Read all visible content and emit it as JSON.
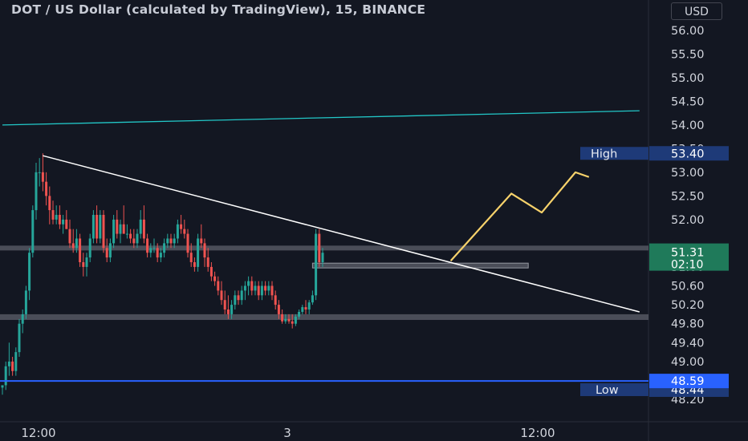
{
  "header": {
    "title": "DOT / US Dollar (calculated by TradingView), 15, BINANCE",
    "currency_button": "USD"
  },
  "colors": {
    "background": "#131722",
    "up": "#26a69a",
    "down": "#ef5350",
    "trend_white": "#ffffff",
    "channel_teal": "#22c7c7",
    "low_line_blue": "#2962ff",
    "arrow_yellow": "#f7d26b",
    "zone_gray": "#5d606b",
    "high_low_label": "#1e3a78"
  },
  "chart_data": {
    "type": "candlestick",
    "symbol": "DOT / US Dollar",
    "interval": "15",
    "exchange": "BINANCE",
    "y_axis": {
      "ylim": [
        48.05,
        56.2
      ],
      "ticks": [
        "56.00",
        "55.50",
        "55.00",
        "54.50",
        "54.00",
        "53.50",
        "53.00",
        "52.50",
        "52.00",
        "51.00",
        "50.60",
        "50.20",
        "49.80",
        "49.40",
        "49.00",
        "48.20"
      ]
    },
    "x_axis": {
      "ticks": [
        "12:00",
        "3",
        "12:00"
      ]
    },
    "candles": [
      [
        48.45,
        48.5,
        48.3,
        48.5
      ],
      [
        48.5,
        49.0,
        48.4,
        48.9
      ],
      [
        48.9,
        49.4,
        48.7,
        49.0
      ],
      [
        49.0,
        49.1,
        48.7,
        48.8
      ],
      [
        48.8,
        49.3,
        48.7,
        49.2
      ],
      [
        49.2,
        49.9,
        49.1,
        49.8
      ],
      [
        49.8,
        50.1,
        49.6,
        50.0
      ],
      [
        50.0,
        50.6,
        49.9,
        50.5
      ],
      [
        50.5,
        51.4,
        50.3,
        51.3
      ],
      [
        51.3,
        52.3,
        51.2,
        52.2
      ],
      [
        52.2,
        53.2,
        52.0,
        53.0
      ],
      [
        53.0,
        53.3,
        52.7,
        53.0
      ],
      [
        53.0,
        53.4,
        52.6,
        52.8
      ],
      [
        52.8,
        53.0,
        52.3,
        52.5
      ],
      [
        52.5,
        52.7,
        51.9,
        52.2
      ],
      [
        52.2,
        52.4,
        51.9,
        52.0
      ],
      [
        52.0,
        52.3,
        51.9,
        52.1
      ],
      [
        52.1,
        52.3,
        51.8,
        51.9
      ],
      [
        51.9,
        52.1,
        51.7,
        52.0
      ],
      [
        52.0,
        52.2,
        51.8,
        51.8
      ],
      [
        51.8,
        52.0,
        51.4,
        51.5
      ],
      [
        51.5,
        51.8,
        51.3,
        51.4
      ],
      [
        51.4,
        51.8,
        51.3,
        51.6
      ],
      [
        51.6,
        51.7,
        51.0,
        51.1
      ],
      [
        51.1,
        51.3,
        50.8,
        51.0
      ],
      [
        51.0,
        51.3,
        50.8,
        51.2
      ],
      [
        51.2,
        51.7,
        51.1,
        51.6
      ],
      [
        51.6,
        52.2,
        51.5,
        52.1
      ],
      [
        52.1,
        52.3,
        51.5,
        51.6
      ],
      [
        51.6,
        52.2,
        51.5,
        52.1
      ],
      [
        52.1,
        52.2,
        51.3,
        51.4
      ],
      [
        51.4,
        51.6,
        51.1,
        51.2
      ],
      [
        51.2,
        51.6,
        51.1,
        51.5
      ],
      [
        51.5,
        52.1,
        51.4,
        52.0
      ],
      [
        52.0,
        52.2,
        51.6,
        51.7
      ],
      [
        51.7,
        52.0,
        51.5,
        51.9
      ],
      [
        51.9,
        52.3,
        51.7,
        51.7
      ],
      [
        51.7,
        51.9,
        51.6,
        51.7
      ],
      [
        51.7,
        51.8,
        51.5,
        51.6
      ],
      [
        51.6,
        51.8,
        51.4,
        51.5
      ],
      [
        51.5,
        51.8,
        51.4,
        51.7
      ],
      [
        51.7,
        52.2,
        51.6,
        52.0
      ],
      [
        52.0,
        52.3,
        51.5,
        51.6
      ],
      [
        51.6,
        51.7,
        51.2,
        51.3
      ],
      [
        51.3,
        51.5,
        51.2,
        51.4
      ],
      [
        51.4,
        51.6,
        51.3,
        51.4
      ],
      [
        51.4,
        51.5,
        51.1,
        51.2
      ],
      [
        51.2,
        51.4,
        51.1,
        51.3
      ],
      [
        51.3,
        51.6,
        51.2,
        51.5
      ],
      [
        51.5,
        51.7,
        51.4,
        51.6
      ],
      [
        51.6,
        51.7,
        51.4,
        51.5
      ],
      [
        51.5,
        51.7,
        51.4,
        51.6
      ],
      [
        51.6,
        52.0,
        51.5,
        51.9
      ],
      [
        51.9,
        52.1,
        51.7,
        51.8
      ],
      [
        51.8,
        52.0,
        51.6,
        51.7
      ],
      [
        51.7,
        51.8,
        51.2,
        51.3
      ],
      [
        51.3,
        51.5,
        51.0,
        51.1
      ],
      [
        51.1,
        51.2,
        50.9,
        51.0
      ],
      [
        51.0,
        51.7,
        50.9,
        51.6
      ],
      [
        51.6,
        51.9,
        51.4,
        51.5
      ],
      [
        51.5,
        51.6,
        51.0,
        51.2
      ],
      [
        51.2,
        51.4,
        50.9,
        51.0
      ],
      [
        51.0,
        51.1,
        50.7,
        50.8
      ],
      [
        50.8,
        50.9,
        50.6,
        50.7
      ],
      [
        50.7,
        50.8,
        50.4,
        50.5
      ],
      [
        50.5,
        50.7,
        50.2,
        50.3
      ],
      [
        50.3,
        50.5,
        50.0,
        50.1
      ],
      [
        50.1,
        50.4,
        49.9,
        50.0
      ],
      [
        50.0,
        50.3,
        49.9,
        50.2
      ],
      [
        50.2,
        50.5,
        50.1,
        50.4
      ],
      [
        50.4,
        50.5,
        50.2,
        50.3
      ],
      [
        50.3,
        50.6,
        50.2,
        50.5
      ],
      [
        50.5,
        50.7,
        50.3,
        50.6
      ],
      [
        50.6,
        50.8,
        50.4,
        50.7
      ],
      [
        50.7,
        50.8,
        50.4,
        50.5
      ],
      [
        50.5,
        50.7,
        50.4,
        50.6
      ],
      [
        50.6,
        50.7,
        50.3,
        50.4
      ],
      [
        50.4,
        50.7,
        50.3,
        50.6
      ],
      [
        50.6,
        50.7,
        50.4,
        50.5
      ],
      [
        50.5,
        50.7,
        50.4,
        50.6
      ],
      [
        50.6,
        50.7,
        50.3,
        50.4
      ],
      [
        50.4,
        50.5,
        50.1,
        50.2
      ],
      [
        50.2,
        50.3,
        49.9,
        50.0
      ],
      [
        50.0,
        50.1,
        49.8,
        49.85
      ],
      [
        49.85,
        50.0,
        49.8,
        49.9
      ],
      [
        49.9,
        50.0,
        49.8,
        49.85
      ],
      [
        49.85,
        50.0,
        49.7,
        49.8
      ],
      [
        49.8,
        50.0,
        49.75,
        49.95
      ],
      [
        49.95,
        50.1,
        49.9,
        50.05
      ],
      [
        50.05,
        50.2,
        50.0,
        50.15
      ],
      [
        50.15,
        50.3,
        50.0,
        50.1
      ],
      [
        50.1,
        50.3,
        50.0,
        50.25
      ],
      [
        50.25,
        50.5,
        50.2,
        50.4
      ],
      [
        50.4,
        51.8,
        50.3,
        51.7
      ],
      [
        51.7,
        51.8,
        51.0,
        51.1
      ],
      [
        51.1,
        51.4,
        51.0,
        51.3
      ]
    ],
    "annotations": [
      {
        "type": "trendline",
        "from": [
          12,
          53.35
        ],
        "to": [
          189,
          50.05
        ]
      },
      {
        "type": "channel_line",
        "from": [
          0,
          54.0
        ],
        "to": [
          189,
          54.3
        ]
      },
      {
        "type": "zone",
        "y_top": 51.45,
        "y_bottom": 51.35
      },
      {
        "type": "zone",
        "y_top": 50.0,
        "y_bottom": 49.88
      },
      {
        "type": "zone",
        "y_top": 51.08,
        "y_bottom": 50.98,
        "x_start": 92,
        "x_end": 156
      },
      {
        "type": "hline",
        "y": 48.59
      },
      {
        "type": "projection_arrow",
        "points": [
          [
            133,
            51.13
          ],
          [
            151,
            52.55
          ],
          [
            160,
            52.15
          ],
          [
            170,
            53.0
          ],
          [
            174,
            52.9
          ]
        ]
      }
    ],
    "price_labels": {
      "high": {
        "label": "High",
        "value": "53.40"
      },
      "low": {
        "label": "Low",
        "value": "48.44"
      },
      "blue_line": {
        "value": "48.59"
      },
      "current": {
        "value": "51.31",
        "countdown": "02:10"
      }
    }
  }
}
